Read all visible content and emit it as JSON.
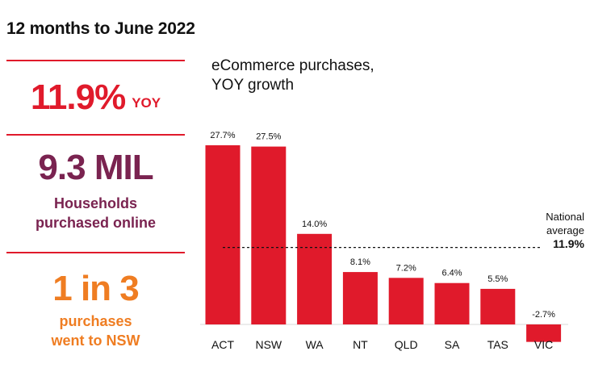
{
  "heading": "12 months to June 2022",
  "stats": {
    "yoy": {
      "value": "11.9%",
      "suffix": "YOY"
    },
    "households": {
      "value": "9.3 MIL",
      "caption_line1": "Households",
      "caption_line2": "purchased online"
    },
    "nsw": {
      "value": "1 in 3",
      "caption_line1": "purchases",
      "caption_line2": "went to NSW"
    }
  },
  "colors": {
    "bar": "#e01a2b",
    "accent_red": "#e01a2b",
    "accent_plum": "#7a2350",
    "accent_orange": "#ef7d22"
  },
  "chart_data": {
    "type": "bar",
    "title_line1": "eCommerce purchases,",
    "title_line2": "YOY growth",
    "categories": [
      "ACT",
      "NSW",
      "WA",
      "NT",
      "QLD",
      "SA",
      "TAS",
      "VIC"
    ],
    "values": [
      27.7,
      27.5,
      14.0,
      8.1,
      7.2,
      6.4,
      5.5,
      -2.7
    ],
    "value_labels": [
      "27.7%",
      "27.5%",
      "14.0%",
      "8.1%",
      "7.2%",
      "6.4%",
      "5.5%",
      "-2.7%"
    ],
    "xlabel": "",
    "ylabel": "",
    "ylim": [
      -2.7,
      27.7
    ],
    "grid": false,
    "reference_line": {
      "value": 11.9,
      "label_line1": "National",
      "label_line2": "average",
      "value_label": "11.9%"
    }
  }
}
